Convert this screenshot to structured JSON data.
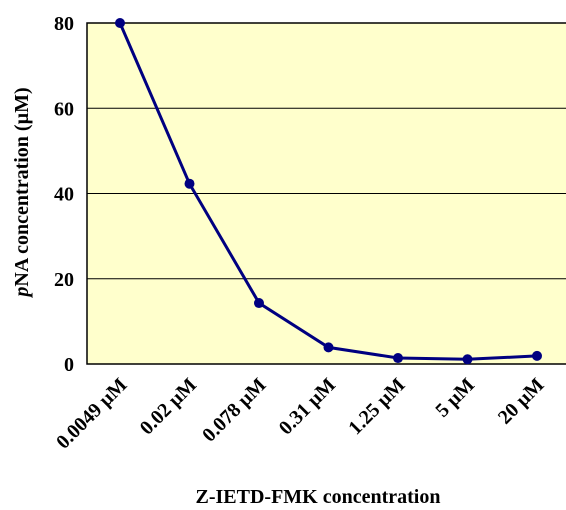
{
  "chart_data": {
    "type": "line",
    "title": "",
    "xlabel": "Z-IETD-FMK concentration",
    "ylabel_prefix": "p",
    "ylabel_rest": "NA concentration  (µM)",
    "categories": [
      "0.0049 µM",
      "0.02 µM",
      "0.078 µM",
      "0.31 µM",
      "1.25 µM",
      "5 µM",
      "20 µM"
    ],
    "series": [
      {
        "values": [
          80,
          42.3,
          14.3,
          3.9,
          1.4,
          1.1,
          1.9
        ]
      }
    ],
    "ylim": [
      0,
      80
    ],
    "yticks": [
      "0",
      "20",
      "40",
      "60",
      "80"
    ],
    "grid": true,
    "colors": {
      "plot_background": "#FFFFCC",
      "line": "#000080",
      "marker": "#000080",
      "grid": "#000000"
    }
  }
}
